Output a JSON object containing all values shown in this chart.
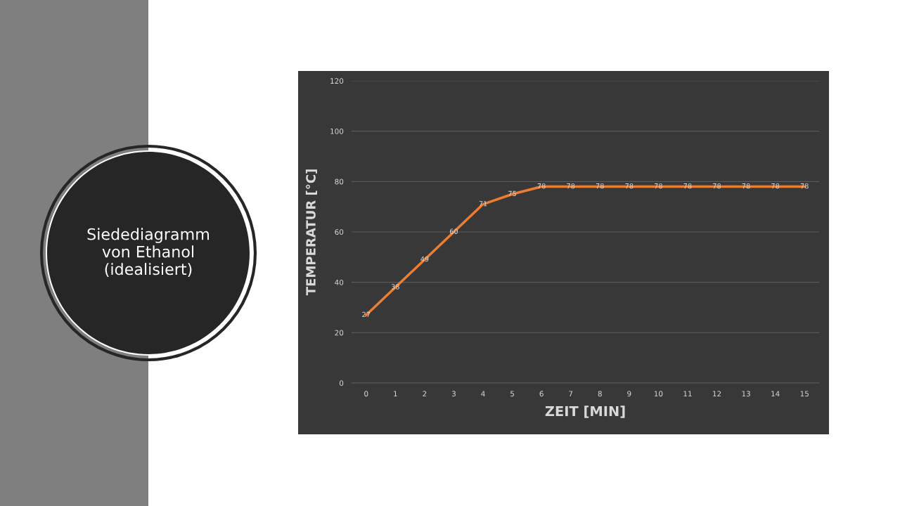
{
  "chart_data": {
    "type": "line",
    "title": "Siedediagramm\nvon Ethanol\n(idealisiert)",
    "xlabel": "ZEIT [MIN]",
    "ylabel": "TEMPERATUR [°C]",
    "categories": [
      "0",
      "1",
      "2",
      "3",
      "4",
      "5",
      "6",
      "7",
      "8",
      "9",
      "10",
      "11",
      "12",
      "13",
      "14",
      "15"
    ],
    "series": [
      {
        "color": "#ed7d31",
        "values": [
          27,
          38,
          49,
          60,
          71,
          75,
          78,
          78,
          78,
          78,
          78,
          78,
          78,
          78,
          78,
          78
        ]
      }
    ],
    "ylim": [
      0,
      120
    ],
    "yticks": [
      0,
      20,
      40,
      60,
      80,
      100,
      120
    ],
    "grid": "y",
    "data_labels": true,
    "legend": false,
    "marker": "none",
    "line_style": "solid"
  }
}
